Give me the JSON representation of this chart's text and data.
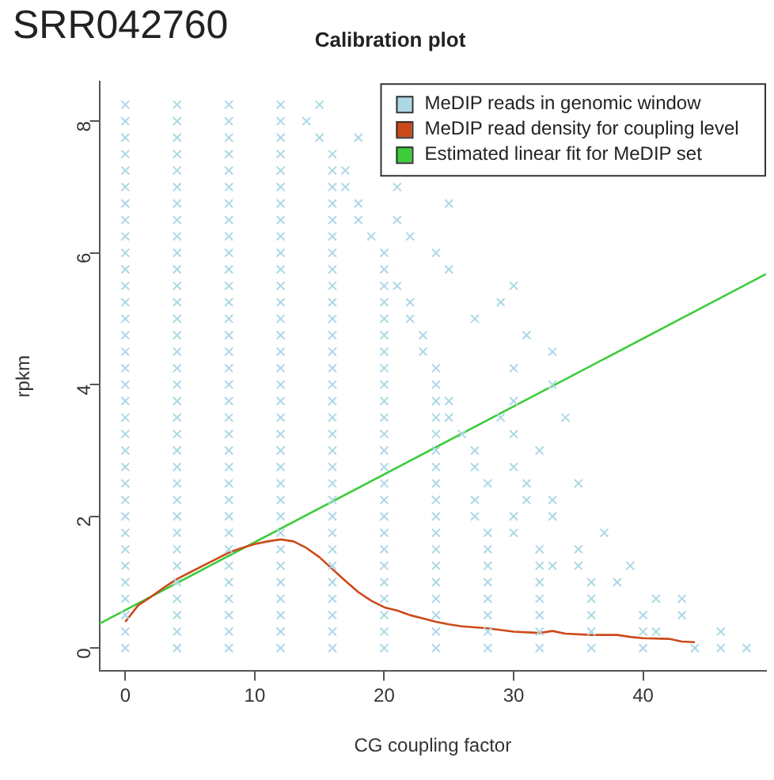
{
  "chart_data": {
    "type": "scatter",
    "title": "Calibration plot",
    "xlabel": "CG coupling factor",
    "ylabel": "rpkm",
    "annotations": [
      "SRR042760"
    ],
    "xlim": [
      -2,
      49.5
    ],
    "xticks": [
      0,
      10,
      20,
      30,
      40
    ],
    "ylim": [
      -0.35,
      8.6
    ],
    "yticks": [
      0,
      2,
      4,
      6,
      8
    ],
    "grid": false,
    "legend": "top right",
    "marker": "cross",
    "series": [
      {
        "name": "MeDIP reads in genomic window",
        "color": "#add8e6",
        "x": [
          0,
          4,
          8,
          12,
          16,
          20,
          24,
          28,
          32,
          36,
          40,
          44,
          46,
          48,
          0,
          4,
          8,
          12,
          16,
          20,
          24,
          28,
          32,
          36,
          40,
          41,
          46,
          0,
          4,
          8,
          12,
          16,
          20,
          24,
          28,
          32,
          36,
          40,
          43,
          0,
          4,
          8,
          12,
          16,
          20,
          24,
          28,
          32,
          36,
          41,
          43,
          0,
          4,
          8,
          12,
          16,
          20,
          24,
          28,
          32,
          36,
          38,
          0,
          4,
          8,
          12,
          16,
          20,
          24,
          28,
          32,
          33,
          35,
          39,
          0,
          4,
          8,
          12,
          16,
          20,
          24,
          28,
          32,
          35,
          0,
          4,
          8,
          12,
          16,
          20,
          24,
          28,
          30,
          37,
          0,
          4,
          8,
          12,
          16,
          20,
          24,
          27,
          30,
          33,
          0,
          4,
          8,
          12,
          16,
          20,
          24,
          27,
          31,
          33,
          0,
          4,
          8,
          12,
          16,
          20,
          24,
          28,
          31,
          35,
          0,
          4,
          8,
          12,
          16,
          20,
          24,
          27,
          30,
          0,
          4,
          8,
          12,
          16,
          20,
          24,
          27,
          32,
          0,
          4,
          8,
          12,
          16,
          20,
          24,
          26,
          30,
          0,
          4,
          8,
          12,
          16,
          20,
          24,
          25,
          29,
          34,
          0,
          4,
          8,
          12,
          16,
          20,
          24,
          25,
          30,
          0,
          4,
          8,
          12,
          16,
          20,
          24,
          33,
          0,
          4,
          8,
          12,
          16,
          20,
          24,
          30,
          0,
          4,
          8,
          12,
          16,
          20,
          23,
          33,
          0,
          4,
          8,
          12,
          16,
          20,
          23,
          31,
          0,
          4,
          8,
          12,
          16,
          20,
          22,
          27,
          0,
          4,
          8,
          12,
          16,
          20,
          22,
          29,
          0,
          4,
          8,
          12,
          16,
          20,
          21,
          30,
          0,
          4,
          8,
          12,
          16,
          20,
          25,
          0,
          4,
          8,
          12,
          16,
          20,
          24,
          0,
          4,
          8,
          12,
          16,
          19,
          22,
          0,
          4,
          8,
          12,
          16,
          18,
          21,
          0,
          4,
          8,
          12,
          16,
          18,
          25,
          0,
          4,
          8,
          12,
          16,
          17,
          21,
          0,
          4,
          8,
          12,
          16,
          17,
          0,
          4,
          8,
          12,
          16,
          0,
          4,
          8,
          12,
          15,
          18,
          0,
          4,
          8,
          12,
          14,
          0,
          4,
          8,
          12,
          15
        ],
        "values": [
          0,
          0,
          0,
          0,
          0,
          0,
          0,
          0,
          0,
          0,
          0,
          0,
          0,
          0,
          0.25,
          0.25,
          0.25,
          0.25,
          0.25,
          0.25,
          0.25,
          0.25,
          0.25,
          0.25,
          0.25,
          0.25,
          0.25,
          0.5,
          0.5,
          0.5,
          0.5,
          0.5,
          0.5,
          0.5,
          0.5,
          0.5,
          0.5,
          0.5,
          0.5,
          0.75,
          0.75,
          0.75,
          0.75,
          0.75,
          0.75,
          0.75,
          0.75,
          0.75,
          0.75,
          0.75,
          0.75,
          1,
          1,
          1,
          1,
          1,
          1,
          1,
          1,
          1,
          1,
          1,
          1.25,
          1.25,
          1.25,
          1.25,
          1.25,
          1.25,
          1.25,
          1.25,
          1.25,
          1.25,
          1.25,
          1.25,
          1.5,
          1.5,
          1.5,
          1.5,
          1.5,
          1.5,
          1.5,
          1.5,
          1.5,
          1.5,
          1.75,
          1.75,
          1.75,
          1.75,
          1.75,
          1.75,
          1.75,
          1.75,
          1.75,
          1.75,
          2,
          2,
          2,
          2,
          2,
          2,
          2,
          2,
          2,
          2,
          2.25,
          2.25,
          2.25,
          2.25,
          2.25,
          2.25,
          2.25,
          2.25,
          2.25,
          2.25,
          2.5,
          2.5,
          2.5,
          2.5,
          2.5,
          2.5,
          2.5,
          2.5,
          2.5,
          2.5,
          2.75,
          2.75,
          2.75,
          2.75,
          2.75,
          2.75,
          2.75,
          2.75,
          2.75,
          3,
          3,
          3,
          3,
          3,
          3,
          3,
          3,
          3,
          3.25,
          3.25,
          3.25,
          3.25,
          3.25,
          3.25,
          3.25,
          3.25,
          3.25,
          3.5,
          3.5,
          3.5,
          3.5,
          3.5,
          3.5,
          3.5,
          3.5,
          3.5,
          3.5,
          3.75,
          3.75,
          3.75,
          3.75,
          3.75,
          3.75,
          3.75,
          3.75,
          3.75,
          4,
          4,
          4,
          4,
          4,
          4,
          4,
          4,
          4.25,
          4.25,
          4.25,
          4.25,
          4.25,
          4.25,
          4.25,
          4.25,
          4.5,
          4.5,
          4.5,
          4.5,
          4.5,
          4.5,
          4.5,
          4.5,
          4.75,
          4.75,
          4.75,
          4.75,
          4.75,
          4.75,
          4.75,
          4.75,
          5,
          5,
          5,
          5,
          5,
          5,
          5,
          5,
          5.25,
          5.25,
          5.25,
          5.25,
          5.25,
          5.25,
          5.25,
          5.25,
          5.5,
          5.5,
          5.5,
          5.5,
          5.5,
          5.5,
          5.5,
          5.5,
          5.75,
          5.75,
          5.75,
          5.75,
          5.75,
          5.75,
          5.75,
          6,
          6,
          6,
          6,
          6,
          6,
          6,
          6.25,
          6.25,
          6.25,
          6.25,
          6.25,
          6.25,
          6.25,
          6.5,
          6.5,
          6.5,
          6.5,
          6.5,
          6.5,
          6.5,
          6.75,
          6.75,
          6.75,
          6.75,
          6.75,
          6.75,
          6.75,
          7,
          7,
          7,
          7,
          7,
          7,
          7,
          7.25,
          7.25,
          7.25,
          7.25,
          7.25,
          7.25,
          7.5,
          7.5,
          7.5,
          7.5,
          7.5,
          7.75,
          7.75,
          7.75,
          7.75,
          7.75,
          7.75,
          8,
          8,
          8,
          8,
          8,
          8.25,
          8.25,
          8.25,
          8.25,
          8.25
        ]
      },
      {
        "name": "MeDIP read density for coupling level",
        "type": "line",
        "color": "#cc4a1a",
        "marker": "none",
        "x": [
          0,
          1,
          2,
          3,
          4,
          5,
          6,
          7,
          8,
          9,
          10,
          11,
          12,
          13,
          14,
          15,
          16,
          17,
          18,
          19,
          20,
          21,
          22,
          23,
          24,
          25,
          26,
          28,
          30,
          32,
          33,
          34,
          36,
          38,
          39,
          40,
          42,
          43,
          44
        ],
        "values": [
          0.4,
          0.65,
          0.78,
          0.92,
          1.05,
          1.15,
          1.25,
          1.35,
          1.45,
          1.52,
          1.58,
          1.62,
          1.65,
          1.62,
          1.52,
          1.38,
          1.2,
          1.02,
          0.85,
          0.72,
          0.62,
          0.57,
          0.5,
          0.45,
          0.4,
          0.36,
          0.33,
          0.3,
          0.25,
          0.23,
          0.26,
          0.22,
          0.2,
          0.2,
          0.17,
          0.15,
          0.14,
          0.1,
          0.09
        ]
      },
      {
        "name": "Estimated linear fit for MeDIP set",
        "type": "line",
        "color": "#3ccc3c",
        "marker": "none",
        "x": [
          -2,
          49.5
        ],
        "values": [
          0.37,
          5.68
        ]
      }
    ]
  }
}
